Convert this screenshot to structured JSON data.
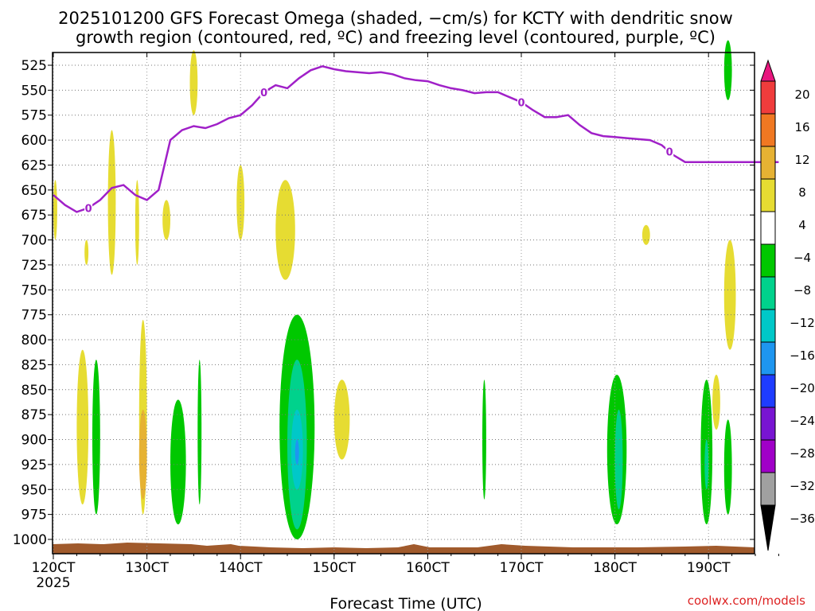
{
  "title_line1": "2025101200 GFS Forecast Omega (shaded, −cm/s) for KCTY with dendritic snow",
  "title_line2": "growth region (contoured, red, ºC) and freezing level (contoured, purple, ºC)",
  "credit": "coolwx.com/models",
  "chart_data": {
    "type": "heatmap",
    "xlabel": "Forecast Time (UTC)",
    "x_tick_labels": [
      "120CT",
      "130CT",
      "140CT",
      "150CT",
      "160CT",
      "170CT",
      "180CT",
      "190CT"
    ],
    "x_tick_hours": [
      0,
      24,
      48,
      72,
      96,
      120,
      144,
      168
    ],
    "x_sub_label": "2025",
    "xlim_hours": [
      0,
      186
    ],
    "y_tick_labels": [
      "525",
      "550",
      "575",
      "600",
      "625",
      "650",
      "675",
      "700",
      "725",
      "750",
      "775",
      "800",
      "825",
      "850",
      "875",
      "900",
      "925",
      "950",
      "975",
      "1000"
    ],
    "y_axis": "pressure (hPa), reversed",
    "grid": true,
    "colorbar": {
      "labels": [
        "20",
        "16",
        "12",
        "8",
        "4",
        "−4",
        "−8",
        "−12",
        "−16",
        "−20",
        "−24",
        "−28",
        "−32",
        "−36"
      ],
      "bands": [
        {
          "range": ">20",
          "color": "#e8167e"
        },
        {
          "range": "16 to 20",
          "color": "#f03c3c"
        },
        {
          "range": "12 to 16",
          "color": "#f07822"
        },
        {
          "range": "8 to 12",
          "color": "#e6b233"
        },
        {
          "range": "4 to 8",
          "color": "#e6dc32"
        },
        {
          "range": "-4 to 4",
          "color": "#ffffff"
        },
        {
          "range": "-8 to -4",
          "color": "#00c800"
        },
        {
          "range": "-12 to -8",
          "color": "#00d28c"
        },
        {
          "range": "-16 to -12",
          "color": "#00c8c8"
        },
        {
          "range": "-20 to -16",
          "color": "#1e96f0"
        },
        {
          "range": "-24 to -20",
          "color": "#1e3cff"
        },
        {
          "range": "-28 to -24",
          "color": "#7814d2"
        },
        {
          "range": "-32 to -28",
          "color": "#a000c8"
        },
        {
          "range": "-36 to -32",
          "color": "#a0a0a0"
        },
        {
          "range": "<-36",
          "color": "#000000"
        }
      ]
    },
    "freezing_level": {
      "color": "#a020c8",
      "label": "0",
      "hours": [
        0,
        3,
        6,
        9,
        12,
        15,
        18,
        21,
        24,
        27,
        30,
        33,
        36,
        39,
        42,
        45,
        48,
        51,
        54,
        57,
        60,
        63,
        66,
        69,
        72,
        75,
        78,
        81,
        84,
        87,
        90,
        93,
        96,
        99,
        102,
        105,
        108,
        111,
        114,
        117,
        120,
        123,
        126,
        129,
        132,
        135,
        138,
        141,
        144,
        147,
        150,
        153,
        156,
        159,
        162,
        165,
        168,
        171,
        174,
        177,
        180,
        183,
        186
      ],
      "pressure": [
        655,
        665,
        672,
        668,
        660,
        648,
        645,
        655,
        660,
        650,
        600,
        590,
        586,
        588,
        584,
        578,
        575,
        565,
        552,
        545,
        548,
        538,
        530,
        526,
        529,
        531,
        532,
        533,
        532,
        534,
        538,
        540,
        541,
        545,
        548,
        550,
        553,
        552,
        552,
        557,
        562,
        570,
        577,
        577,
        575,
        585,
        593,
        596,
        597,
        598,
        599,
        600,
        605,
        615,
        622,
        622,
        622,
        622,
        622,
        622,
        622,
        622,
        622
      ],
      "label_positions_hours": [
        9,
        54,
        120,
        158
      ]
    },
    "omega_regions": [
      {
        "hours": [
          0,
          1
        ],
        "pressure": [
          640,
          700
        ],
        "band": "4 to 8"
      },
      {
        "hours": [
          6,
          9
        ],
        "pressure": [
          810,
          965
        ],
        "band": "4 to 8"
      },
      {
        "hours": [
          8,
          9
        ],
        "pressure": [
          700,
          725
        ],
        "band": "4 to 8"
      },
      {
        "hours": [
          14,
          16
        ],
        "pressure": [
          590,
          735
        ],
        "band": "4 to 8"
      },
      {
        "hours": [
          21,
          22
        ],
        "pressure": [
          640,
          725
        ],
        "band": "4 to 8"
      },
      {
        "hours": [
          22,
          24
        ],
        "pressure": [
          780,
          975
        ],
        "band": "4 to 8"
      },
      {
        "hours": [
          22,
          24
        ],
        "pressure": [
          870,
          960
        ],
        "band": "8 to 12"
      },
      {
        "hours": [
          28,
          30
        ],
        "pressure": [
          660,
          700
        ],
        "band": "4 to 8"
      },
      {
        "hours": [
          35,
          37
        ],
        "pressure": [
          510,
          575
        ],
        "band": "4 to 8"
      },
      {
        "hours": [
          47,
          49
        ],
        "pressure": [
          625,
          700
        ],
        "band": "4 to 8"
      },
      {
        "hours": [
          57,
          62
        ],
        "pressure": [
          640,
          740
        ],
        "band": "4 to 8"
      },
      {
        "hours": [
          72,
          76
        ],
        "pressure": [
          840,
          920
        ],
        "band": "4 to 8"
      },
      {
        "hours": [
          151,
          153
        ],
        "pressure": [
          685,
          705
        ],
        "band": "4 to 8"
      },
      {
        "hours": [
          169,
          171
        ],
        "pressure": [
          835,
          890
        ],
        "band": "4 to 8"
      },
      {
        "hours": [
          172,
          175
        ],
        "pressure": [
          700,
          810
        ],
        "band": "4 to 8"
      },
      {
        "hours": [
          10,
          12
        ],
        "pressure": [
          820,
          975
        ],
        "band": "-8 to -4"
      },
      {
        "hours": [
          30,
          34
        ],
        "pressure": [
          860,
          985
        ],
        "band": "-8 to -4"
      },
      {
        "hours": [
          37,
          38
        ],
        "pressure": [
          820,
          965
        ],
        "band": "-8 to -4"
      },
      {
        "hours": [
          58,
          67
        ],
        "pressure": [
          775,
          1000
        ],
        "band": "-8 to -4"
      },
      {
        "hours": [
          60,
          65
        ],
        "pressure": [
          820,
          990
        ],
        "band": "-12 to -8"
      },
      {
        "hours": [
          61,
          64
        ],
        "pressure": [
          870,
          950
        ],
        "band": "-16 to -12"
      },
      {
        "hours": [
          62,
          63
        ],
        "pressure": [
          900,
          925
        ],
        "band": "-20 to -16"
      },
      {
        "hours": [
          110,
          111
        ],
        "pressure": [
          840,
          960
        ],
        "band": "-8 to -4"
      },
      {
        "hours": [
          142,
          147
        ],
        "pressure": [
          835,
          985
        ],
        "band": "-8 to -4"
      },
      {
        "hours": [
          144,
          146
        ],
        "pressure": [
          870,
          970
        ],
        "band": "-12 to -8"
      },
      {
        "hours": [
          166,
          169
        ],
        "pressure": [
          840,
          985
        ],
        "band": "-8 to -4"
      },
      {
        "hours": [
          167,
          168
        ],
        "pressure": [
          900,
          950
        ],
        "band": "-12 to -8"
      },
      {
        "hours": [
          172,
          174
        ],
        "pressure": [
          880,
          975
        ],
        "band": "-8 to -4"
      },
      {
        "hours": [
          172,
          174
        ],
        "pressure": [
          500,
          560
        ],
        "band": "-8 to -4"
      }
    ],
    "terrain_color": "#a05a2c"
  }
}
